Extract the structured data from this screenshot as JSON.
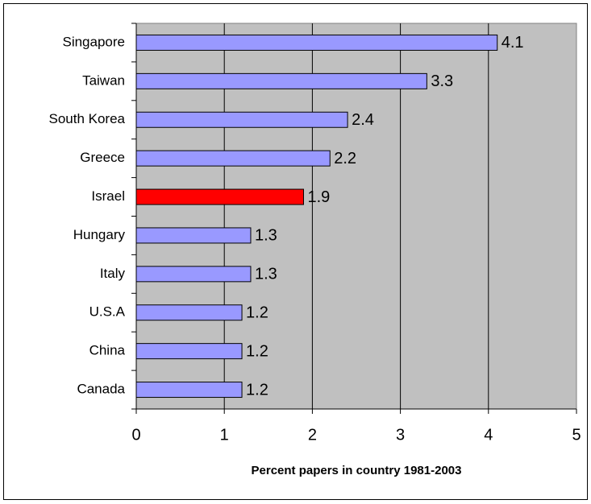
{
  "chart_data": {
    "type": "bar",
    "orientation": "horizontal",
    "xlabel": "Percent papers in country 1981-2003",
    "categories": [
      "Singapore",
      "Taiwan",
      "South Korea",
      "Greece",
      "Israel",
      "Hungary",
      "Italy",
      "U.S.A",
      "China",
      "Canada"
    ],
    "values": [
      4.1,
      3.3,
      2.4,
      2.2,
      1.9,
      1.3,
      1.3,
      1.2,
      1.2,
      1.2
    ],
    "colors": [
      "#9999ff",
      "#9999ff",
      "#9999ff",
      "#9999ff",
      "#ff0000",
      "#9999ff",
      "#9999ff",
      "#9999ff",
      "#9999ff",
      "#9999ff"
    ],
    "xlim": [
      0,
      5
    ],
    "xticks": [
      0,
      1,
      2,
      3,
      4,
      5
    ],
    "grid": true,
    "plot_background": "#c0c0c0"
  }
}
